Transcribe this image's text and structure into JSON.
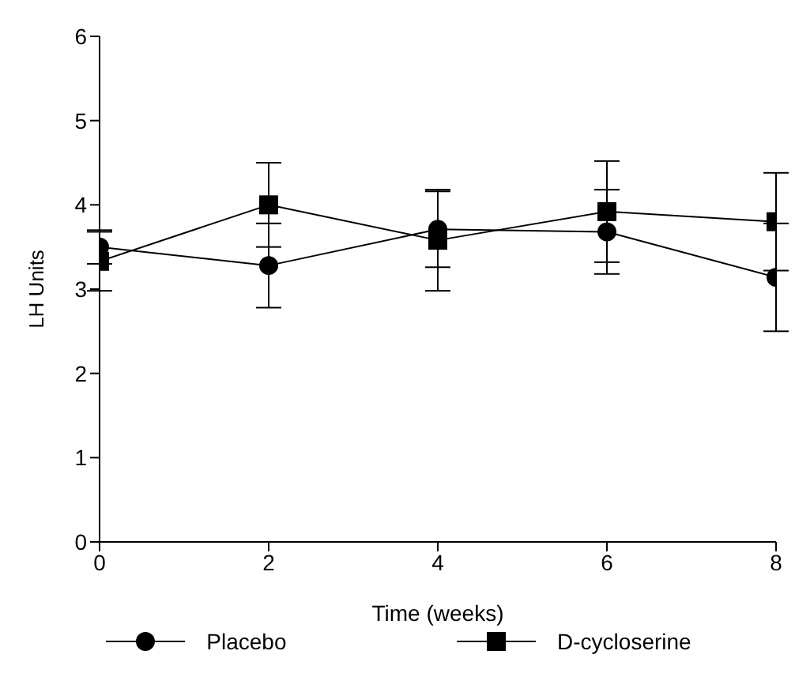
{
  "chart_data": {
    "type": "line",
    "xlabel": "Time (weeks)",
    "ylabel": "LH Units",
    "x": [
      0,
      2,
      4,
      6,
      8
    ],
    "xlim": [
      0,
      8
    ],
    "xticks": [
      0,
      2,
      4,
      6,
      8
    ],
    "ylim": [
      0,
      6
    ],
    "yticks": [
      0,
      1,
      2,
      3,
      4,
      5,
      6
    ],
    "grid": false,
    "legend": "bottom",
    "series": [
      {
        "name": "Placebo",
        "color": "#000000",
        "marker": "circle",
        "values": [
          3.5,
          3.28,
          3.71,
          3.68,
          3.14
        ],
        "errors": [
          0.2,
          0.5,
          0.45,
          0.5,
          0.64
        ]
      },
      {
        "name": "D-cycloserine",
        "color": "#000000",
        "marker": "square",
        "values": [
          3.33,
          4.0,
          3.58,
          3.92,
          3.8
        ],
        "errors": [
          0.35,
          0.5,
          0.6,
          0.6,
          0.58
        ]
      }
    ]
  }
}
